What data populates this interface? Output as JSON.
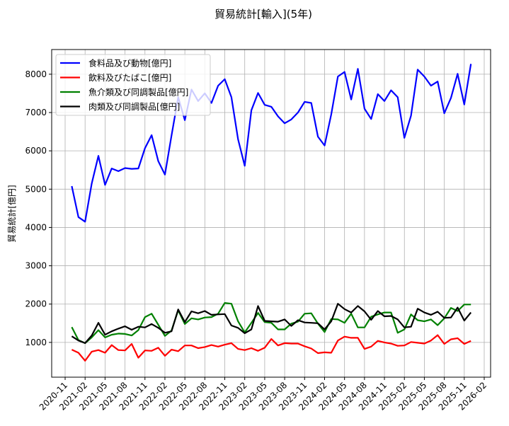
{
  "chart_data": {
    "type": "line",
    "title": "貿易統計[輸入](5年)",
    "xlabel": "",
    "ylabel": "貿易統計[億円]",
    "ylim": [
      100,
      8650
    ],
    "yticks": [
      1000,
      2000,
      3000,
      4000,
      5000,
      6000,
      7000,
      8000
    ],
    "xtick_labels": [
      "2020-11",
      "2021-02",
      "2021-05",
      "2021-08",
      "2021-11",
      "2022-02",
      "2022-05",
      "2022-08",
      "2022-11",
      "2023-02",
      "2023-05",
      "2023-08",
      "2023-11",
      "2024-02",
      "2024-05",
      "2024-08",
      "2024-11",
      "2025-02",
      "2025-05",
      "2025-08",
      "2025-11",
      "2026-02"
    ],
    "x_start": "2020-12",
    "grid": true,
    "legend": "top-left",
    "series": [
      {
        "name": "食料品及び動物[億円]",
        "color": "#0000ff",
        "values": [
          5080,
          4270,
          4150,
          5150,
          5870,
          5110,
          5540,
          5470,
          5550,
          5530,
          5540,
          6070,
          6410,
          5730,
          5380,
          6400,
          7400,
          6800,
          7600,
          7300,
          7500,
          7250,
          7700,
          7870,
          7400,
          6300,
          5610,
          7060,
          7510,
          7200,
          7150,
          6900,
          6720,
          6820,
          7000,
          7280,
          7250,
          6370,
          6140,
          6950,
          7940,
          8060,
          7340,
          8140,
          7100,
          6830,
          7480,
          7300,
          7580,
          7400,
          6340,
          6920,
          8120,
          7940,
          7700,
          7810,
          6980,
          7380,
          8010,
          7210,
          8270
        ]
      },
      {
        "name": "飲料及びたばこ[億円]",
        "color": "#ff0000",
        "values": [
          810,
          730,
          520,
          760,
          800,
          730,
          930,
          800,
          790,
          960,
          600,
          790,
          780,
          860,
          650,
          810,
          770,
          920,
          920,
          850,
          880,
          930,
          890,
          940,
          980,
          830,
          800,
          850,
          780,
          860,
          1090,
          920,
          980,
          970,
          970,
          900,
          840,
          720,
          740,
          730,
          1050,
          1150,
          1120,
          1120,
          830,
          890,
          1040,
          1000,
          970,
          910,
          920,
          1010,
          990,
          970,
          1050,
          1190,
          960,
          1080,
          1110,
          960,
          1040
        ]
      },
      {
        "name": "魚介類及び同調製品[億円]",
        "color": "#008000",
        "values": [
          1400,
          1060,
          980,
          1130,
          1320,
          1130,
          1200,
          1230,
          1220,
          1180,
          1320,
          1660,
          1750,
          1460,
          1170,
          1310,
          1840,
          1480,
          1630,
          1600,
          1650,
          1660,
          1750,
          2030,
          2010,
          1550,
          1260,
          1510,
          1770,
          1530,
          1510,
          1340,
          1340,
          1490,
          1540,
          1750,
          1760,
          1490,
          1270,
          1610,
          1600,
          1510,
          1750,
          1390,
          1390,
          1670,
          1730,
          1780,
          1780,
          1250,
          1340,
          1730,
          1580,
          1550,
          1600,
          1450,
          1630,
          1900,
          1820,
          1990,
          1990
        ]
      },
      {
        "name": "肉類及び同調製品[億円]",
        "color": "#000000",
        "values": [
          1160,
          1050,
          980,
          1180,
          1510,
          1200,
          1290,
          1360,
          1420,
          1330,
          1410,
          1390,
          1480,
          1380,
          1250,
          1290,
          1860,
          1530,
          1810,
          1760,
          1820,
          1720,
          1730,
          1740,
          1440,
          1380,
          1240,
          1340,
          1950,
          1560,
          1550,
          1540,
          1600,
          1430,
          1580,
          1520,
          1510,
          1500,
          1340,
          1550,
          2010,
          1870,
          1780,
          1950,
          1810,
          1590,
          1820,
          1680,
          1690,
          1600,
          1390,
          1410,
          1880,
          1780,
          1720,
          1800,
          1640,
          1650,
          1910,
          1570,
          1780
        ]
      }
    ]
  }
}
